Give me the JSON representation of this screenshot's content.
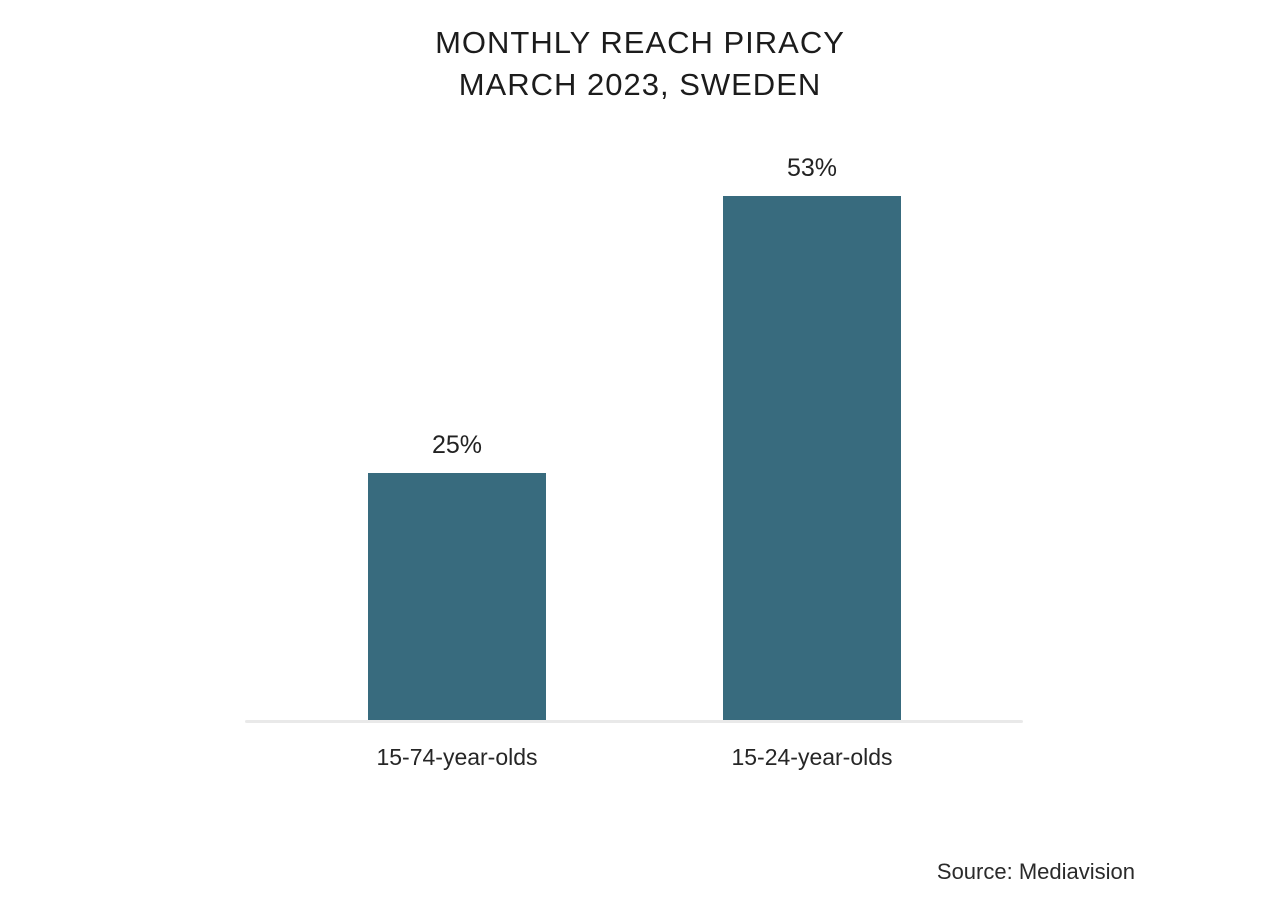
{
  "title": {
    "line1": "MONTHLY REACH PIRACY",
    "line2": "MARCH 2023, SWEDEN"
  },
  "source": "Source: Mediavision",
  "colors": {
    "bar": "#386b7e",
    "axis": "#e9e9e9",
    "title_text": "#1c1c1c",
    "label_text": "#262626",
    "background": "#ffffff"
  },
  "chart_data": {
    "type": "bar",
    "title": "MONTHLY REACH PIRACY MARCH 2023, SWEDEN",
    "categories": [
      "15-74-year-olds",
      "15-24-year-olds"
    ],
    "values": [
      25,
      53
    ],
    "value_labels": [
      "25%",
      "53%"
    ],
    "xlabel": "",
    "ylabel": "",
    "ylim": [
      0,
      60
    ],
    "grid": false,
    "legend": false,
    "bar_color": "#386b7e",
    "annotation": "Source: Mediavision"
  }
}
